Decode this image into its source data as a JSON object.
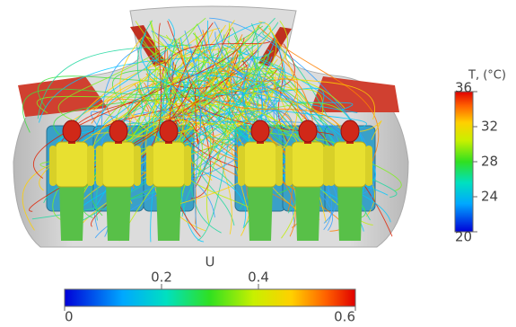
{
  "temperature_bar": {
    "label": "T, (°C)",
    "range": [
      20,
      36
    ],
    "ticks": [
      20,
      24,
      28,
      32,
      36
    ]
  },
  "velocity_bar": {
    "label": "U",
    "range": [
      0,
      0.6
    ],
    "ticks": [
      0,
      0.2,
      0.4,
      0.6
    ]
  }
}
